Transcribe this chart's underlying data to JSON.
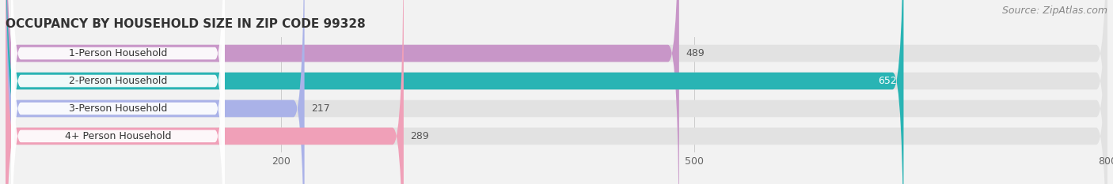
{
  "title": "OCCUPANCY BY HOUSEHOLD SIZE IN ZIP CODE 99328",
  "source": "Source: ZipAtlas.com",
  "categories": [
    "1-Person Household",
    "2-Person Household",
    "3-Person Household",
    "4+ Person Household"
  ],
  "values": [
    489,
    652,
    217,
    289
  ],
  "bar_colors": [
    "#c896c8",
    "#29b4b4",
    "#aab2e8",
    "#f0a0b8"
  ],
  "value_label_colors": [
    "#555555",
    "#ffffff",
    "#555555",
    "#555555"
  ],
  "background_color": "#f2f2f2",
  "bar_background_color": "#e2e2e2",
  "xmax": 800,
  "xticks": [
    200,
    500,
    800
  ],
  "bar_height": 0.62,
  "figsize": [
    14.06,
    2.33
  ],
  "dpi": 100,
  "title_fontsize": 11,
  "source_fontsize": 9,
  "label_fontsize": 9,
  "value_fontsize": 9
}
